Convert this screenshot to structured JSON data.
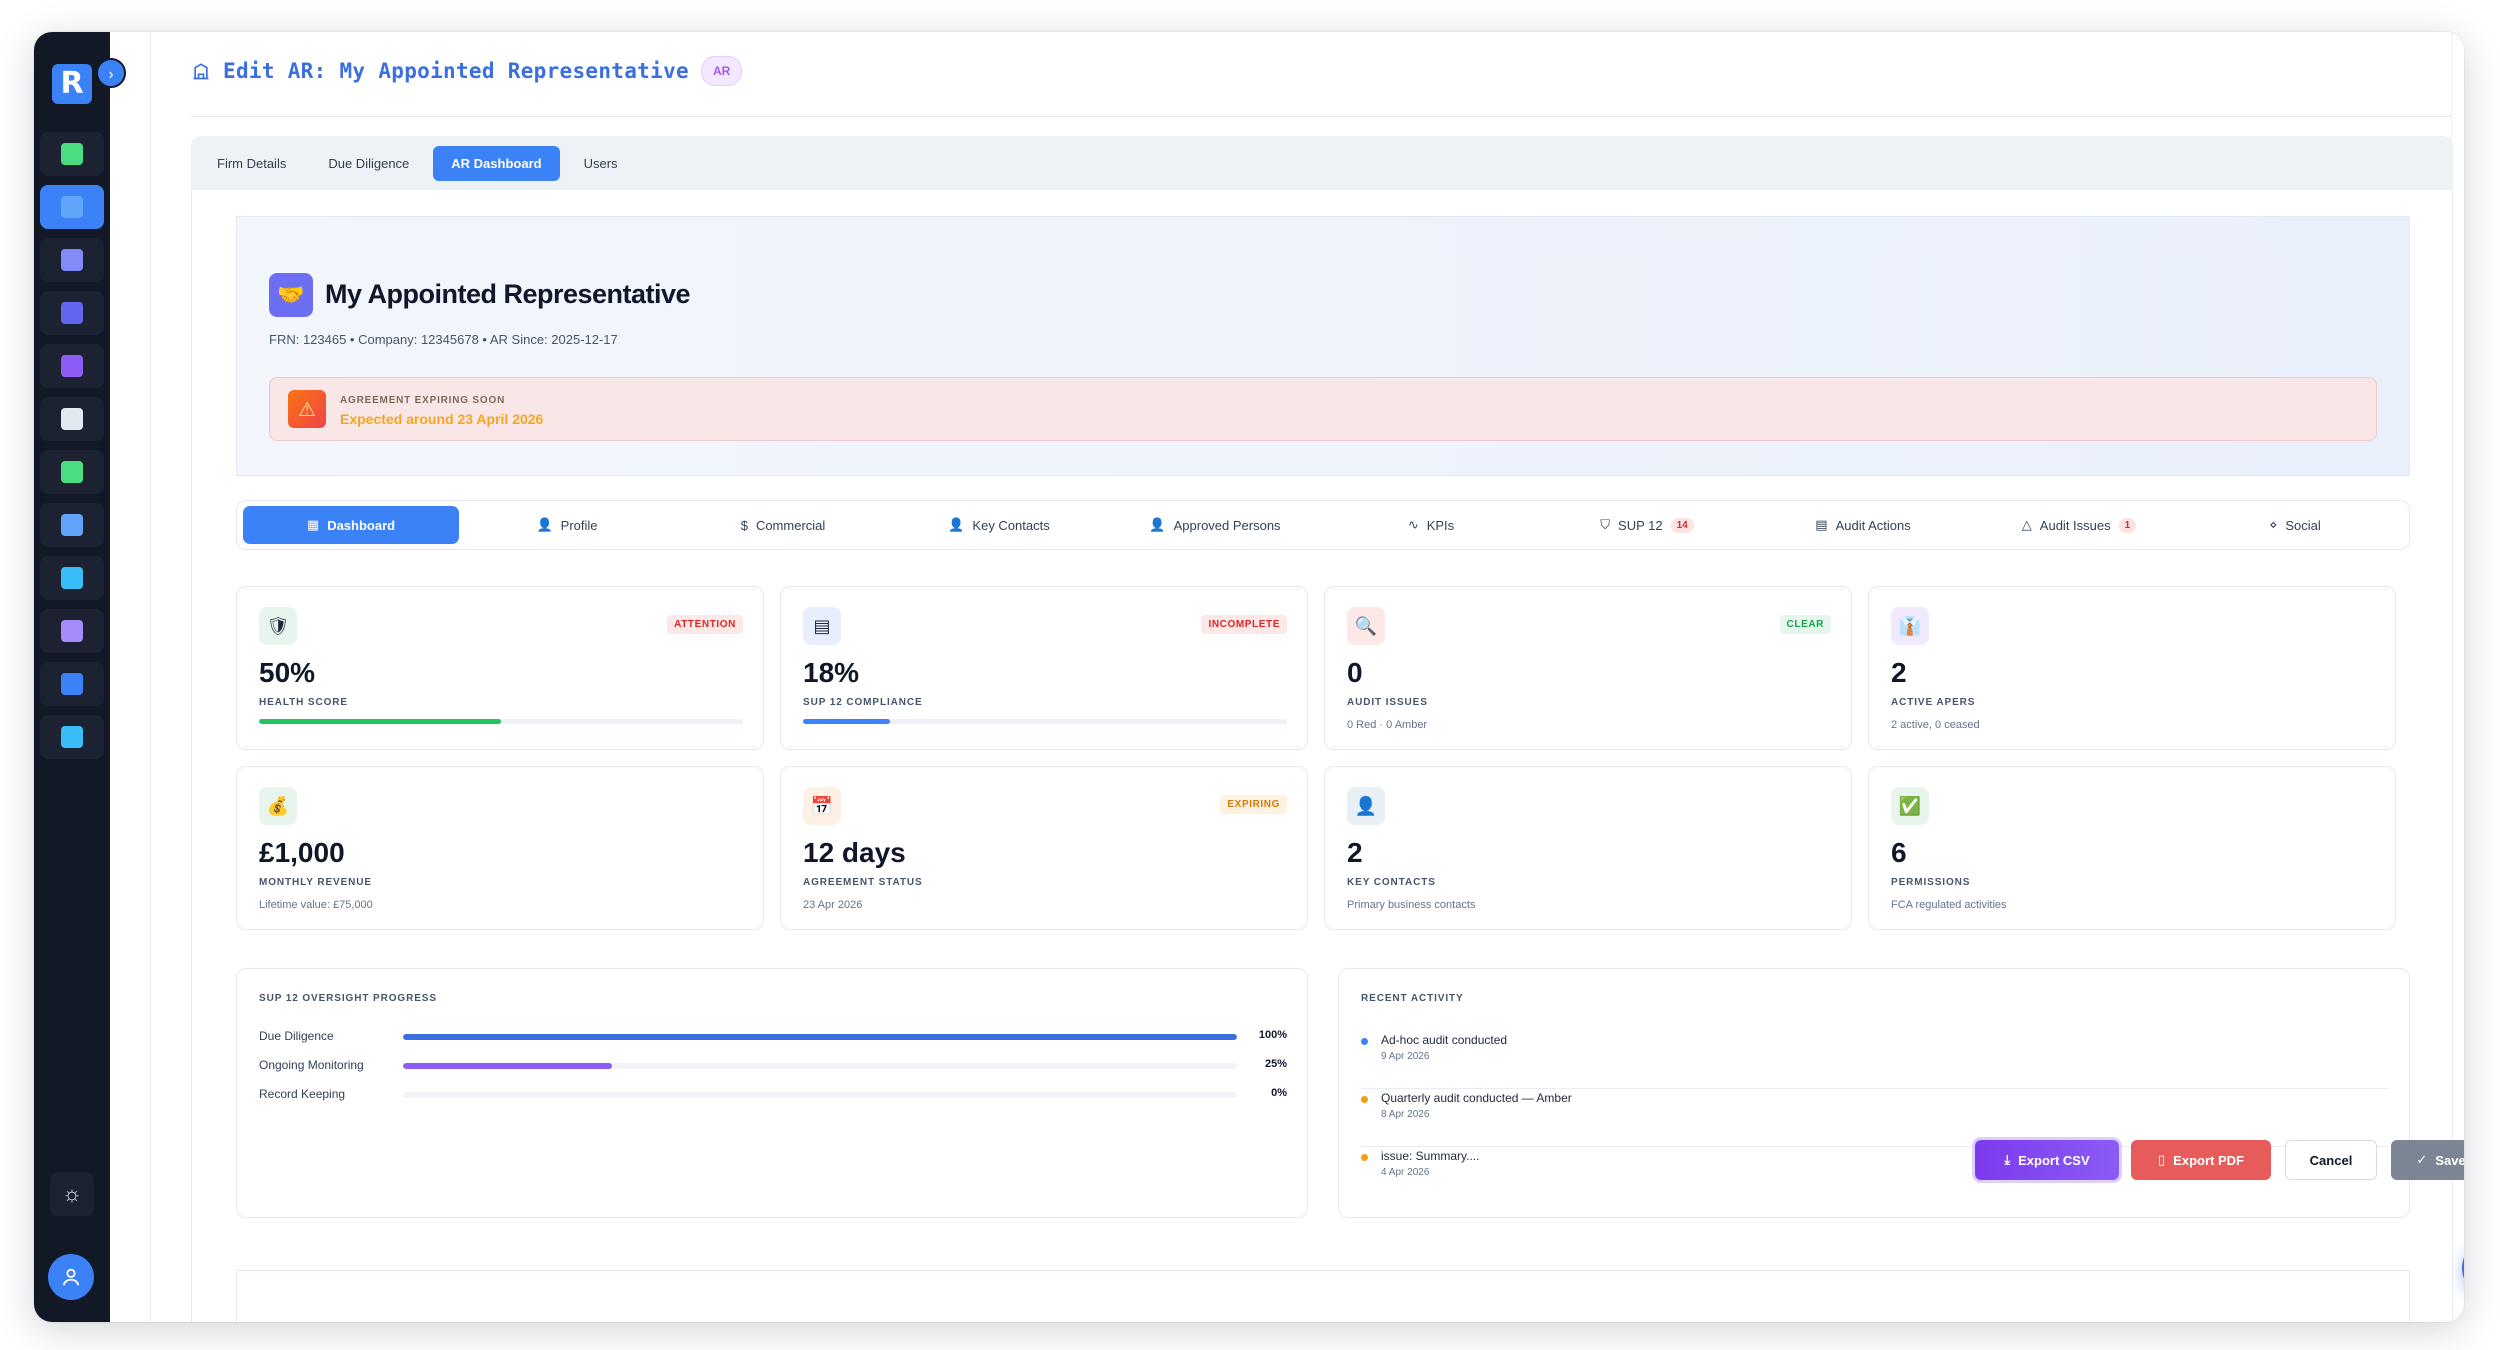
{
  "app": {
    "logo_letter": "R"
  },
  "sidebar": {
    "items": [
      {
        "name": "ledger",
        "color": "#4ade80"
      },
      {
        "name": "building",
        "color": "#60a5fa"
      },
      {
        "name": "users",
        "color": "#818cf8"
      },
      {
        "name": "shield",
        "color": "#6366f1"
      },
      {
        "name": "clipboard",
        "color": "#8b5cf6"
      },
      {
        "name": "news",
        "color": "#e2e8f0"
      },
      {
        "name": "card",
        "color": "#4ade80"
      },
      {
        "name": "chart",
        "color": "#60a5fa"
      },
      {
        "name": "report",
        "color": "#38bdf8"
      },
      {
        "name": "list",
        "color": "#a78bfa"
      },
      {
        "name": "target",
        "color": "#3b82f6"
      },
      {
        "name": "screen",
        "color": "#38bdf8"
      }
    ]
  },
  "header": {
    "title": "Edit AR: My Appointed Representative",
    "badge": "AR"
  },
  "top_tabs": [
    {
      "label": "Firm Details"
    },
    {
      "label": "Due Diligence"
    },
    {
      "label": "AR Dashboard"
    },
    {
      "label": "Users"
    }
  ],
  "hero": {
    "name": "My Appointed Representative",
    "meta": "FRN: 123465 • Company: 12345678 • AR Since: 2025-12-17",
    "alert_title": "AGREEMENT EXPIRING SOON",
    "alert_sub": "Expected around 23 April 2026"
  },
  "sub_tabs": [
    {
      "label": "Dashboard",
      "icon": "▦"
    },
    {
      "label": "Profile",
      "icon": "👤"
    },
    {
      "label": "Commercial",
      "icon": "$"
    },
    {
      "label": "Key Contacts",
      "icon": "👤"
    },
    {
      "label": "Approved Persons",
      "icon": "👤"
    },
    {
      "label": "KPIs",
      "icon": "∿"
    },
    {
      "label": "SUP 12",
      "icon": "⛉",
      "count": "14"
    },
    {
      "label": "Audit Actions",
      "icon": "▤"
    },
    {
      "label": "Audit Issues",
      "icon": "△",
      "count": "1"
    },
    {
      "label": "Social",
      "icon": "⋄"
    }
  ],
  "cards": [
    {
      "icon": "🛡",
      "icon_bg": "#e8f5ec",
      "badge": "ATTENTION",
      "badge_color": "#dc2626",
      "badge_bg": "#fde8e8",
      "value": "50%",
      "label": "HEALTH SCORE",
      "progress": 0.5,
      "bar_color": "#22c55e"
    },
    {
      "icon": "▤",
      "icon_bg": "#e8eefb",
      "badge": "INCOMPLETE",
      "badge_color": "#dc2626",
      "badge_bg": "#fde8e8",
      "value": "18%",
      "label": "SUP 12 COMPLIANCE",
      "progress": 0.18,
      "bar_color": "#3b82f6"
    },
    {
      "icon": "🔍",
      "icon_bg": "#fde8e8",
      "badge": "CLEAR",
      "badge_color": "#16a34a",
      "badge_bg": "#e6f6ec",
      "value": "0",
      "label": "AUDIT ISSUES",
      "sub": "0 Red · 0 Amber"
    },
    {
      "icon": "👔",
      "icon_bg": "#f1e9fd",
      "value": "2",
      "label": "ACTIVE APERS",
      "sub": "2 active, 0 ceased"
    },
    {
      "icon": "💰",
      "icon_bg": "#e8f5ec",
      "value": "£1,000",
      "label": "MONTHLY REVENUE",
      "sub": "Lifetime value: £75,000"
    },
    {
      "icon": "📅",
      "icon_bg": "#fdf0e4",
      "badge": "EXPIRING",
      "badge_color": "#d97706",
      "badge_bg": "#fdf1e1",
      "value": "12 days",
      "label": "AGREEMENT STATUS",
      "sub": "23 Apr 2026"
    },
    {
      "icon": "👤",
      "icon_bg": "#e8f0f5",
      "value": "2",
      "label": "KEY CONTACTS",
      "sub": "Primary business contacts"
    },
    {
      "icon": "✅",
      "icon_bg": "#e8f5ec",
      "value": "6",
      "label": "PERMISSIONS",
      "sub": "FCA regulated activities"
    }
  ],
  "oversight": {
    "title": "SUP 12 OVERSIGHT PROGRESS",
    "rows": [
      {
        "label": "Due Diligence",
        "pct": "100%",
        "value": 1.0,
        "color": "#3b6fe0"
      },
      {
        "label": "Ongoing Monitoring",
        "pct": "25%",
        "value": 0.25,
        "color": "#8b5cf6"
      },
      {
        "label": "Record Keeping",
        "pct": "0%",
        "value": 0.0,
        "color": "#3b6fe0"
      }
    ]
  },
  "activity": {
    "title": "RECENT ACTIVITY",
    "items": [
      {
        "title": "Ad-hoc audit conducted",
        "date": "9 Apr 2026",
        "color": "#3b82f6"
      },
      {
        "title": "Quarterly audit conducted — Amber",
        "date": "8 Apr 2026",
        "color": "#f59e0b"
      },
      {
        "title": "issue: Summary....",
        "date": "4 Apr 2026",
        "color": "#f59e0b"
      }
    ]
  },
  "footer": {
    "export_csv": "Export CSV",
    "export_pdf": "Export PDF",
    "cancel": "Cancel",
    "saved": "Saved"
  }
}
